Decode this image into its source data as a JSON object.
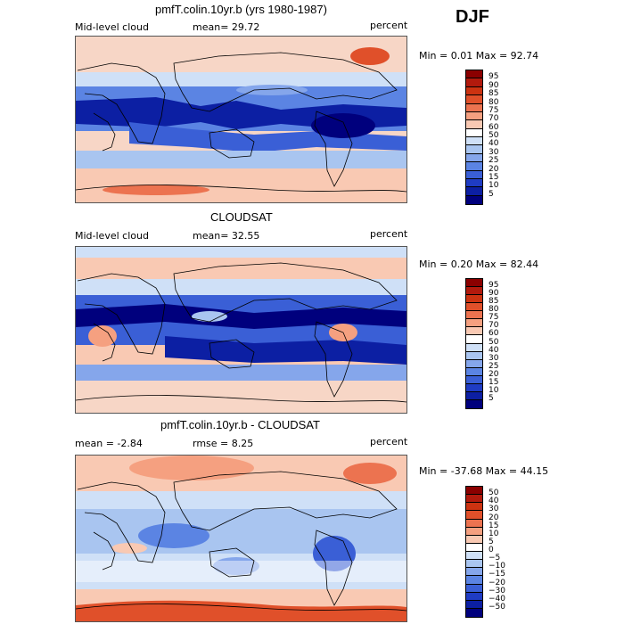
{
  "season": "DJF",
  "panels": [
    {
      "title": "pmfT.colin.10yr.b (yrs 1980-1987)",
      "left_label": "Mid-level cloud",
      "center_label": "mean=  29.72",
      "right_label": "percent",
      "minmax": "Min =   0.01 Max =  92.74",
      "colorbar": {
        "labels": [
          "95",
          "90",
          "85",
          "80",
          "75",
          "70",
          "60",
          "50",
          "40",
          "30",
          "25",
          "20",
          "15",
          "10",
          "5"
        ],
        "colors": [
          "#8b0000",
          "#b21a0d",
          "#cc3311",
          "#e0502a",
          "#ec7350",
          "#f5a080",
          "#f9c9b3",
          "#ffffff",
          "#cfe0f7",
          "#a9c5f0",
          "#85a6eb",
          "#5b84e3",
          "#3a5fd6",
          "#1f3cc4",
          "#0c1fa3",
          "#00007d"
        ]
      }
    },
    {
      "title": "CLOUDSAT",
      "left_label": "Mid-level cloud",
      "center_label": "mean=  32.55",
      "right_label": "percent",
      "minmax": "Min =   0.20 Max =  82.44",
      "colorbar": {
        "labels": [
          "95",
          "90",
          "85",
          "80",
          "75",
          "70",
          "60",
          "50",
          "40",
          "30",
          "25",
          "20",
          "15",
          "10",
          "5"
        ],
        "colors": [
          "#8b0000",
          "#b21a0d",
          "#cc3311",
          "#e0502a",
          "#ec7350",
          "#f5a080",
          "#f9c9b3",
          "#ffffff",
          "#cfe0f7",
          "#a9c5f0",
          "#85a6eb",
          "#5b84e3",
          "#3a5fd6",
          "#1f3cc4",
          "#0c1fa3",
          "#00007d"
        ]
      }
    },
    {
      "title": "pmfT.colin.10yr.b - CLOUDSAT",
      "left_label": "mean =  -2.84",
      "center_label": "rmse =   8.25",
      "right_label": "percent",
      "minmax": "Min = -37.68 Max =  44.15",
      "colorbar": {
        "labels": [
          "50",
          "40",
          "30",
          "20",
          "15",
          "10",
          "5",
          "0",
          "−5",
          "−10",
          "−15",
          "−20",
          "−30",
          "−40",
          "−50"
        ],
        "colors": [
          "#8b0000",
          "#b21a0d",
          "#cc3311",
          "#e0502a",
          "#ec7350",
          "#f5a080",
          "#f9c9b3",
          "#ffffff",
          "#cfe0f7",
          "#a9c5f0",
          "#85a6eb",
          "#5b84e3",
          "#3a5fd6",
          "#1f3cc4",
          "#0c1fa3",
          "#00007d"
        ]
      }
    }
  ]
}
